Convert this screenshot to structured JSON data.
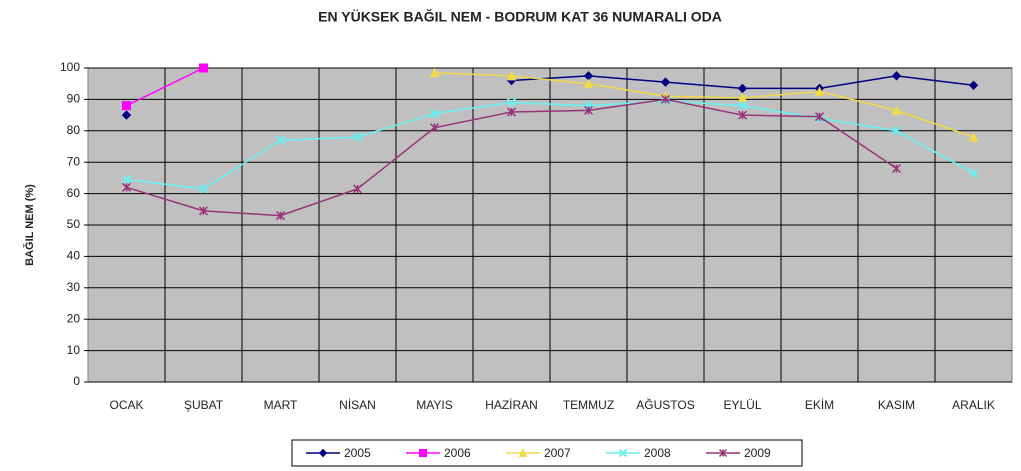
{
  "chart_data": {
    "type": "line",
    "title": "EN YÜKSEK BAĞIL NEM - BODRUM KAT 36 NUMARALI ODA",
    "y_label": "BAĞIL NEM (%)",
    "categories": [
      "OCAK",
      "ŞUBAT",
      "MART",
      "NİSAN",
      "MAYIS",
      "HAZİRAN",
      "TEMMUZ",
      "AĞUSTOS",
      "EYLÜL",
      "EKİM",
      "KASIM",
      "ARALIK"
    ],
    "series": [
      {
        "name": "2005",
        "color": "#000080",
        "marker": "diamond",
        "values": [
          85,
          null,
          null,
          null,
          null,
          96,
          97.5,
          95.5,
          93.5,
          93.5,
          97.5,
          94.5
        ]
      },
      {
        "name": "2006",
        "color": "#ff00ff",
        "marker": "square",
        "values": [
          88,
          100,
          null,
          null,
          null,
          null,
          null,
          null,
          null,
          null,
          null,
          null
        ]
      },
      {
        "name": "2007",
        "color": "#f2d94a",
        "marker": "triangle",
        "values": [
          null,
          null,
          null,
          null,
          98.5,
          97.5,
          95,
          91,
          90.5,
          92.5,
          86.5,
          78
        ]
      },
      {
        "name": "2008",
        "color": "#66f2f2",
        "marker": "x",
        "values": [
          64.5,
          61.5,
          77,
          78,
          85.5,
          89,
          88,
          89.5,
          88,
          84,
          80,
          66.5
        ]
      },
      {
        "name": "2009",
        "color": "#993377",
        "marker": "star",
        "values": [
          62,
          54.5,
          53,
          61.5,
          81,
          86,
          86.5,
          90,
          85,
          84.5,
          68,
          null
        ]
      }
    ],
    "ylim": [
      0,
      100
    ],
    "yticks": [
      0,
      10,
      20,
      30,
      40,
      50,
      60,
      70,
      80,
      90,
      100
    ],
    "grid": true
  }
}
